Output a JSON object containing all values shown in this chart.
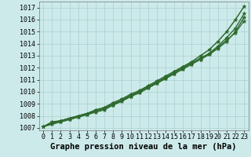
{
  "xlabel": "Graphe pression niveau de la mer (hPa)",
  "ylim": [
    1006.8,
    1017.5
  ],
  "xlim": [
    -0.5,
    23.5
  ],
  "yticks": [
    1007,
    1008,
    1009,
    1010,
    1011,
    1012,
    1013,
    1014,
    1015,
    1016,
    1017
  ],
  "xticks": [
    0,
    1,
    2,
    3,
    4,
    5,
    6,
    7,
    8,
    9,
    10,
    11,
    12,
    13,
    14,
    15,
    16,
    17,
    18,
    19,
    20,
    21,
    22,
    23
  ],
  "background_color": "#cdeaea",
  "grid_color": "#aacfcf",
  "line_color": "#2d6a2d",
  "series": [
    [
      1007.1,
      1007.5,
      1007.6,
      1007.8,
      1008.0,
      1008.2,
      1008.5,
      1008.7,
      1009.1,
      1009.4,
      1009.8,
      1010.1,
      1010.5,
      1010.9,
      1011.3,
      1011.7,
      1012.1,
      1012.5,
      1013.0,
      1013.5,
      1014.2,
      1015.0,
      1016.0,
      1017.1
    ],
    [
      1007.1,
      1007.4,
      1007.6,
      1007.8,
      1008.0,
      1008.2,
      1008.4,
      1008.6,
      1009.0,
      1009.3,
      1009.7,
      1010.0,
      1010.4,
      1010.8,
      1011.2,
      1011.6,
      1012.0,
      1012.4,
      1012.8,
      1013.2,
      1013.8,
      1014.5,
      1015.3,
      1016.5
    ],
    [
      1007.1,
      1007.4,
      1007.5,
      1007.7,
      1007.9,
      1008.1,
      1008.4,
      1008.6,
      1008.9,
      1009.3,
      1009.6,
      1010.0,
      1010.4,
      1010.7,
      1011.1,
      1011.5,
      1011.9,
      1012.3,
      1012.7,
      1013.1,
      1013.6,
      1014.2,
      1015.0,
      1016.2
    ],
    [
      1007.1,
      1007.3,
      1007.5,
      1007.7,
      1007.9,
      1008.1,
      1008.3,
      1008.5,
      1008.9,
      1009.2,
      1009.6,
      1009.9,
      1010.3,
      1010.7,
      1011.1,
      1011.5,
      1011.9,
      1012.3,
      1012.7,
      1013.1,
      1013.7,
      1014.3,
      1014.9,
      1015.9
    ]
  ],
  "font_family": "monospace",
  "tick_fontsize": 6,
  "xlabel_fontsize": 7.5,
  "marker": "*",
  "markersize": 3.5,
  "linewidth": 1.0
}
